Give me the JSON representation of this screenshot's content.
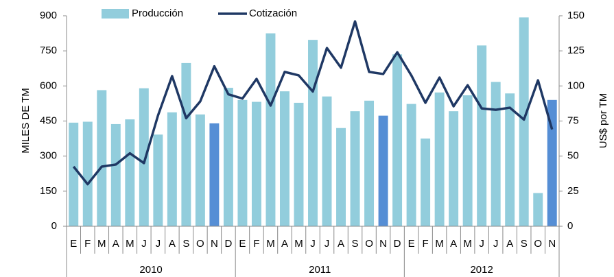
{
  "chart_data": {
    "type": "bar_line",
    "groups": [
      {
        "label": "2010",
        "categories": [
          "E",
          "F",
          "M",
          "A",
          "M",
          "J",
          "J",
          "A",
          "S",
          "O",
          "N",
          "D"
        ]
      },
      {
        "label": "2011",
        "categories": [
          "E",
          "F",
          "M",
          "A",
          "M",
          "J",
          "J",
          "A",
          "S",
          "O",
          "N",
          "D"
        ]
      },
      {
        "label": "2012",
        "categories": [
          "E",
          "F",
          "M",
          "A",
          "M",
          "J",
          "J",
          "A",
          "S",
          "O",
          "N"
        ]
      }
    ],
    "series": [
      {
        "name": "Producción",
        "type": "bar",
        "color": "#92cddc",
        "highlight_color": "#558ed5",
        "highlight": [
          10,
          22,
          34
        ],
        "values": [
          443,
          447,
          582,
          437,
          457,
          590,
          392,
          487,
          698,
          478,
          440,
          592,
          540,
          532,
          825,
          577,
          528,
          797,
          555,
          420,
          492,
          537,
          473,
          735,
          523,
          375,
          572,
          492,
          560,
          773,
          617,
          568,
          893,
          142,
          540
        ]
      },
      {
        "name": "Cotización",
        "type": "line",
        "axis": "y2",
        "color": "#1f3864",
        "values": [
          42.5,
          30,
          42.5,
          44,
          52,
          45,
          79,
          107,
          77,
          89,
          114,
          94,
          91,
          105,
          86,
          110,
          107.5,
          96,
          127,
          113,
          146,
          110,
          108.5,
          124,
          107.5,
          88,
          106,
          85.5,
          100.5,
          84,
          83,
          84.5,
          76,
          104,
          69
        ]
      }
    ],
    "ylabel": "MILES DE TM",
    "y2label": "US$ por TM",
    "ylim": [
      0,
      900
    ],
    "yticks": [
      0,
      150,
      300,
      450,
      600,
      750,
      900
    ],
    "y2lim": [
      0,
      150
    ],
    "y2ticks": [
      0,
      25,
      50,
      75,
      100,
      125,
      150
    ]
  }
}
